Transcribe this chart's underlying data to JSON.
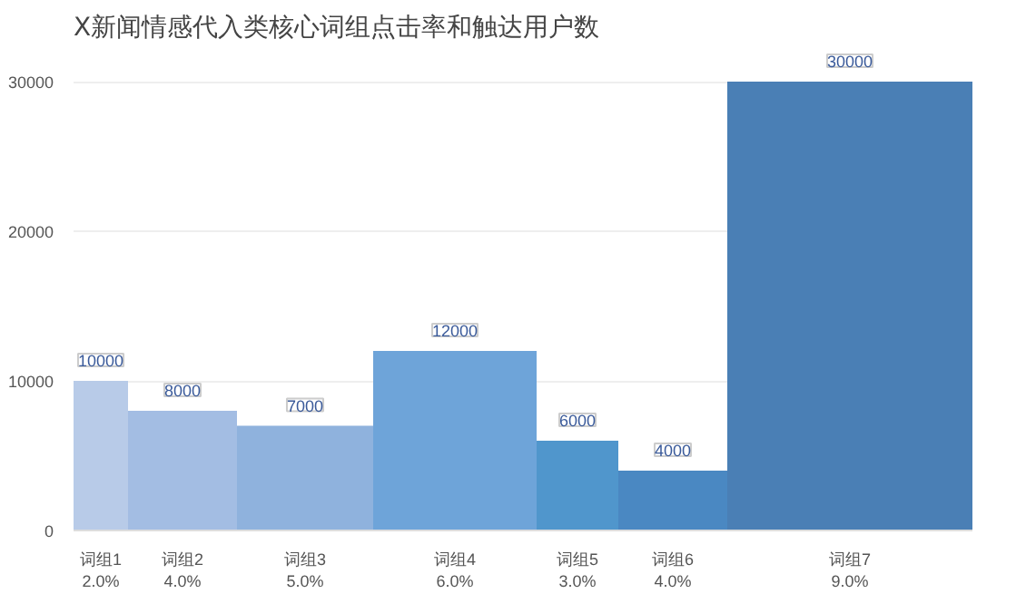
{
  "chart_data": {
    "type": "bar",
    "title": "X新闻情感代入类核心词组点击率和触达用户数",
    "categories": [
      "词组1\n2.0%",
      "词组2\n4.0%",
      "词组3\n5.0%",
      "词组4\n6.0%",
      "词组5\n3.0%",
      "词组6\n4.0%",
      "词组7\n9.0%"
    ],
    "values": [
      10000,
      8000,
      7000,
      12000,
      6000,
      4000,
      30000
    ],
    "colors": [
      "#b8cbe8",
      "#a3bde3",
      "#8fb2dd",
      "#6ea4d9",
      "#5096cc",
      "#4a88c2",
      "#4a7fb5"
    ],
    "ylim": [
      0,
      32000
    ],
    "yticks": [
      0,
      10000,
      20000,
      30000
    ],
    "grid": "y",
    "data_labels": true
  }
}
